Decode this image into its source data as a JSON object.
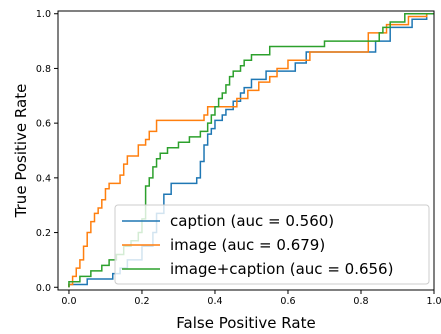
{
  "chart_data": {
    "type": "line",
    "xlabel": "False Positive Rate",
    "ylabel": "True Positive Rate",
    "xlim": [
      0.0,
      1.0
    ],
    "ylim": [
      0.0,
      1.0
    ],
    "xticks": [
      "0.0",
      "0.2",
      "0.4",
      "0.6",
      "0.8",
      "1.0"
    ],
    "yticks": [
      "0.0",
      "0.2",
      "0.4",
      "0.6",
      "0.8",
      "1.0"
    ],
    "grid": false,
    "legend_position": "lower-right",
    "series": [
      {
        "name": "caption (auc = 0.560)",
        "color": "#1f77b4",
        "points": [
          [
            0.0,
            0.0
          ],
          [
            0.0,
            0.01
          ],
          [
            0.05,
            0.01
          ],
          [
            0.05,
            0.03
          ],
          [
            0.12,
            0.03
          ],
          [
            0.12,
            0.05
          ],
          [
            0.14,
            0.05
          ],
          [
            0.14,
            0.07
          ],
          [
            0.16,
            0.07
          ],
          [
            0.16,
            0.1
          ],
          [
            0.2,
            0.1
          ],
          [
            0.2,
            0.15
          ],
          [
            0.23,
            0.15
          ],
          [
            0.23,
            0.2
          ],
          [
            0.24,
            0.2
          ],
          [
            0.24,
            0.27
          ],
          [
            0.26,
            0.27
          ],
          [
            0.26,
            0.34
          ],
          [
            0.28,
            0.34
          ],
          [
            0.28,
            0.38
          ],
          [
            0.35,
            0.38
          ],
          [
            0.35,
            0.4
          ],
          [
            0.36,
            0.4
          ],
          [
            0.36,
            0.46
          ],
          [
            0.37,
            0.46
          ],
          [
            0.37,
            0.52
          ],
          [
            0.38,
            0.52
          ],
          [
            0.38,
            0.56
          ],
          [
            0.39,
            0.56
          ],
          [
            0.39,
            0.58
          ],
          [
            0.4,
            0.58
          ],
          [
            0.4,
            0.61
          ],
          [
            0.42,
            0.61
          ],
          [
            0.42,
            0.63
          ],
          [
            0.43,
            0.63
          ],
          [
            0.43,
            0.65
          ],
          [
            0.45,
            0.65
          ],
          [
            0.45,
            0.68
          ],
          [
            0.47,
            0.68
          ],
          [
            0.47,
            0.71
          ],
          [
            0.48,
            0.71
          ],
          [
            0.48,
            0.73
          ],
          [
            0.5,
            0.73
          ],
          [
            0.5,
            0.76
          ],
          [
            0.54,
            0.76
          ],
          [
            0.54,
            0.79
          ],
          [
            0.62,
            0.79
          ],
          [
            0.62,
            0.82
          ],
          [
            0.65,
            0.82
          ],
          [
            0.65,
            0.86
          ],
          [
            0.84,
            0.86
          ],
          [
            0.84,
            0.9
          ],
          [
            0.88,
            0.9
          ],
          [
            0.88,
            0.95
          ],
          [
            0.94,
            0.95
          ],
          [
            0.94,
            0.98
          ],
          [
            0.98,
            0.98
          ],
          [
            0.98,
            1.0
          ],
          [
            1.0,
            1.0
          ]
        ]
      },
      {
        "name": "image (auc = 0.679)",
        "color": "#ff7f0e",
        "points": [
          [
            0.0,
            0.0
          ],
          [
            0.0,
            0.01
          ],
          [
            0.01,
            0.01
          ],
          [
            0.01,
            0.04
          ],
          [
            0.02,
            0.04
          ],
          [
            0.02,
            0.07
          ],
          [
            0.03,
            0.07
          ],
          [
            0.03,
            0.1
          ],
          [
            0.04,
            0.1
          ],
          [
            0.04,
            0.15
          ],
          [
            0.05,
            0.15
          ],
          [
            0.05,
            0.2
          ],
          [
            0.06,
            0.2
          ],
          [
            0.06,
            0.24
          ],
          [
            0.07,
            0.24
          ],
          [
            0.07,
            0.27
          ],
          [
            0.08,
            0.27
          ],
          [
            0.08,
            0.29
          ],
          [
            0.09,
            0.29
          ],
          [
            0.09,
            0.32
          ],
          [
            0.1,
            0.32
          ],
          [
            0.1,
            0.36
          ],
          [
            0.11,
            0.36
          ],
          [
            0.11,
            0.38
          ],
          [
            0.14,
            0.38
          ],
          [
            0.14,
            0.41
          ],
          [
            0.15,
            0.41
          ],
          [
            0.15,
            0.45
          ],
          [
            0.16,
            0.45
          ],
          [
            0.16,
            0.48
          ],
          [
            0.19,
            0.48
          ],
          [
            0.19,
            0.52
          ],
          [
            0.21,
            0.52
          ],
          [
            0.21,
            0.54
          ],
          [
            0.22,
            0.54
          ],
          [
            0.22,
            0.57
          ],
          [
            0.24,
            0.57
          ],
          [
            0.24,
            0.61
          ],
          [
            0.37,
            0.61
          ],
          [
            0.37,
            0.63
          ],
          [
            0.38,
            0.63
          ],
          [
            0.38,
            0.66
          ],
          [
            0.46,
            0.66
          ],
          [
            0.46,
            0.69
          ],
          [
            0.49,
            0.69
          ],
          [
            0.49,
            0.72
          ],
          [
            0.52,
            0.72
          ],
          [
            0.52,
            0.75
          ],
          [
            0.55,
            0.75
          ],
          [
            0.55,
            0.77
          ],
          [
            0.57,
            0.77
          ],
          [
            0.57,
            0.8
          ],
          [
            0.6,
            0.8
          ],
          [
            0.6,
            0.83
          ],
          [
            0.66,
            0.83
          ],
          [
            0.66,
            0.86
          ],
          [
            0.82,
            0.86
          ],
          [
            0.82,
            0.93
          ],
          [
            0.87,
            0.93
          ],
          [
            0.87,
            0.96
          ],
          [
            0.93,
            0.96
          ],
          [
            0.93,
            0.99
          ],
          [
            0.98,
            0.99
          ],
          [
            0.98,
            1.0
          ],
          [
            1.0,
            1.0
          ]
        ]
      },
      {
        "name": "image+caption (auc = 0.656)",
        "color": "#2ca02c",
        "points": [
          [
            0.0,
            0.0
          ],
          [
            0.0,
            0.02
          ],
          [
            0.03,
            0.02
          ],
          [
            0.03,
            0.04
          ],
          [
            0.06,
            0.04
          ],
          [
            0.06,
            0.06
          ],
          [
            0.09,
            0.06
          ],
          [
            0.09,
            0.08
          ],
          [
            0.11,
            0.08
          ],
          [
            0.11,
            0.1
          ],
          [
            0.13,
            0.1
          ],
          [
            0.13,
            0.12
          ],
          [
            0.15,
            0.12
          ],
          [
            0.15,
            0.15
          ],
          [
            0.17,
            0.15
          ],
          [
            0.17,
            0.17
          ],
          [
            0.19,
            0.17
          ],
          [
            0.19,
            0.2
          ],
          [
            0.2,
            0.2
          ],
          [
            0.2,
            0.25
          ],
          [
            0.21,
            0.25
          ],
          [
            0.21,
            0.37
          ],
          [
            0.22,
            0.37
          ],
          [
            0.22,
            0.4
          ],
          [
            0.23,
            0.4
          ],
          [
            0.23,
            0.44
          ],
          [
            0.24,
            0.44
          ],
          [
            0.24,
            0.47
          ],
          [
            0.25,
            0.47
          ],
          [
            0.25,
            0.49
          ],
          [
            0.27,
            0.49
          ],
          [
            0.27,
            0.51
          ],
          [
            0.3,
            0.51
          ],
          [
            0.3,
            0.53
          ],
          [
            0.33,
            0.53
          ],
          [
            0.33,
            0.55
          ],
          [
            0.36,
            0.55
          ],
          [
            0.36,
            0.57
          ],
          [
            0.38,
            0.57
          ],
          [
            0.38,
            0.6
          ],
          [
            0.39,
            0.6
          ],
          [
            0.39,
            0.63
          ],
          [
            0.4,
            0.63
          ],
          [
            0.4,
            0.66
          ],
          [
            0.41,
            0.66
          ],
          [
            0.41,
            0.69
          ],
          [
            0.42,
            0.69
          ],
          [
            0.42,
            0.71
          ],
          [
            0.43,
            0.71
          ],
          [
            0.43,
            0.74
          ],
          [
            0.44,
            0.74
          ],
          [
            0.44,
            0.77
          ],
          [
            0.45,
            0.77
          ],
          [
            0.45,
            0.79
          ],
          [
            0.47,
            0.79
          ],
          [
            0.47,
            0.81
          ],
          [
            0.48,
            0.81
          ],
          [
            0.48,
            0.83
          ],
          [
            0.5,
            0.83
          ],
          [
            0.5,
            0.85
          ],
          [
            0.55,
            0.85
          ],
          [
            0.55,
            0.88
          ],
          [
            0.7,
            0.88
          ],
          [
            0.7,
            0.9
          ],
          [
            0.85,
            0.9
          ],
          [
            0.85,
            0.93
          ],
          [
            0.86,
            0.93
          ],
          [
            0.86,
            0.95
          ],
          [
            0.88,
            0.95
          ],
          [
            0.88,
            0.97
          ],
          [
            0.92,
            0.97
          ],
          [
            0.92,
            1.0
          ],
          [
            1.0,
            1.0
          ]
        ]
      }
    ]
  }
}
